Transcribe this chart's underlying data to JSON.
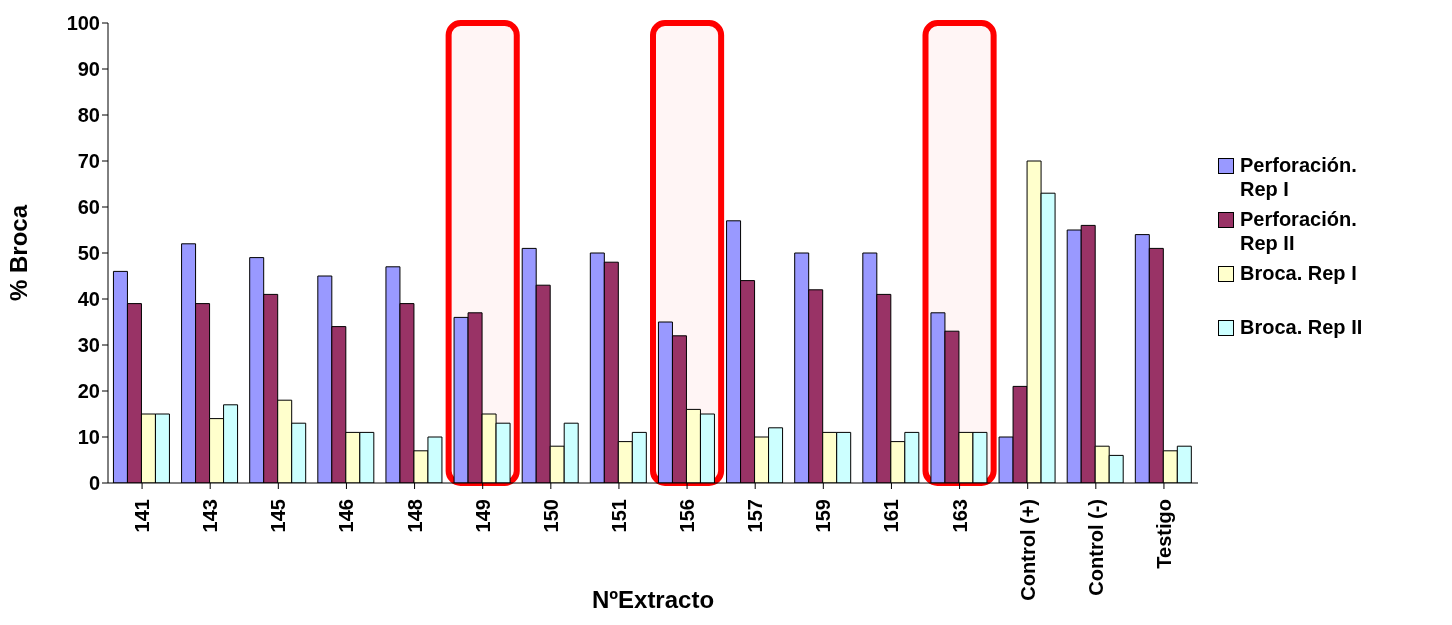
{
  "chart_data": {
    "type": "bar",
    "xlabel": "NºExtracto",
    "ylabel": "% Broca",
    "categories": [
      "141",
      "143",
      "145",
      "146",
      "148",
      "149",
      "150",
      "151",
      "156",
      "157",
      "159",
      "161",
      "163",
      "Control (+)",
      "Control (-)",
      "Testigo"
    ],
    "series": [
      {
        "name": "Perforación. Rep I",
        "color": "#9999ff",
        "values": [
          46,
          52,
          49,
          45,
          47,
          36,
          51,
          50,
          35,
          57,
          50,
          50,
          37,
          10,
          55,
          54
        ]
      },
      {
        "name": "Perforación. Rep II",
        "color": "#993366",
        "values": [
          39,
          39,
          41,
          34,
          39,
          37,
          43,
          48,
          32,
          44,
          42,
          41,
          33,
          21,
          56,
          51
        ]
      },
      {
        "name": "Broca. Rep I",
        "color": "#ffffcc",
        "values": [
          15,
          14,
          18,
          11,
          7,
          15,
          8,
          9,
          16,
          10,
          11,
          9,
          11,
          70,
          8,
          7
        ]
      },
      {
        "name": "Broca. Rep II",
        "color": "#ccffff",
        "values": [
          15,
          17,
          13,
          11,
          10,
          13,
          13,
          11,
          15,
          12,
          11,
          11,
          11,
          63,
          6,
          8
        ]
      }
    ],
    "ylim": [
      0,
      100
    ],
    "yticks": [
      0,
      10,
      20,
      30,
      40,
      50,
      60,
      70,
      80,
      90,
      100
    ],
    "grid": false,
    "legend": "right",
    "bands": [
      {
        "axis": "x",
        "from": "149",
        "to": "149",
        "color": "#ff0000"
      },
      {
        "axis": "x",
        "from": "156",
        "to": "156",
        "color": "#ff0000"
      },
      {
        "axis": "x",
        "from": "163",
        "to": "163",
        "color": "#ff0000"
      }
    ]
  }
}
